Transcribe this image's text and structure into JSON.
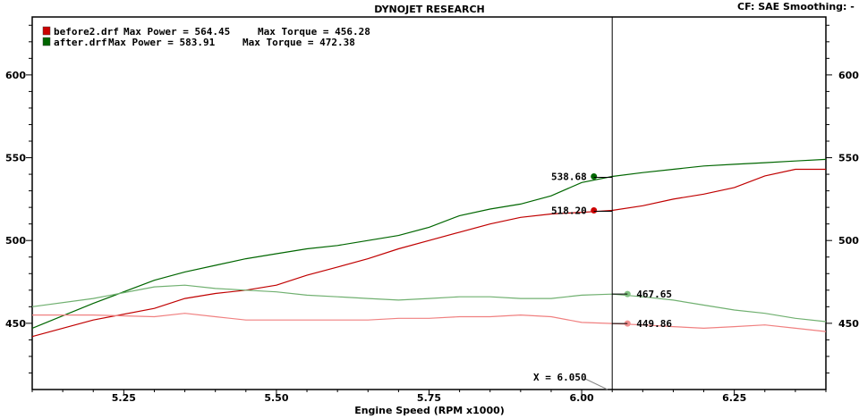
{
  "header": {
    "title": "DYNOJET RESEARCH",
    "right_info": "CF: SAE  Smoothing: -"
  },
  "legend": [
    {
      "file": "before2.drf",
      "power_label": "Max Power = 564.45",
      "torque_label": "Max Torque = 456.28",
      "color": "#cc0000"
    },
    {
      "file": "after.drf",
      "power_label": "Max Power = 583.91",
      "torque_label": "Max Torque = 472.38",
      "color": "#006600"
    }
  ],
  "cursor": {
    "label": "X = 6.050"
  },
  "chart_data": {
    "type": "line",
    "xlabel": "Engine Speed (RPM x1000)",
    "ylabel": "",
    "xlim": [
      5.1,
      6.4
    ],
    "ylim": [
      410,
      635
    ],
    "x_ticks": [
      5.25,
      5.5,
      5.75,
      6.0,
      6.25
    ],
    "x_tick_labels": [
      "5.25",
      "5.50",
      "5.75",
      "6.00",
      "6.25"
    ],
    "y_ticks": [
      450,
      500,
      550,
      600
    ],
    "y_tick_labels": [
      "450",
      "500",
      "550",
      "600"
    ],
    "cursor_x": 6.05,
    "grid": true,
    "series": [
      {
        "name": "before2.drf Power",
        "color": "#c00000",
        "x": [
          5.1,
          5.2,
          5.3,
          5.35,
          5.4,
          5.45,
          5.5,
          5.55,
          5.6,
          5.65,
          5.7,
          5.75,
          5.8,
          5.85,
          5.9,
          5.95,
          6.0,
          6.05,
          6.1,
          6.15,
          6.2,
          6.25,
          6.3,
          6.35,
          6.4
        ],
        "y": [
          442,
          452,
          459,
          465,
          468,
          470,
          473,
          479,
          484,
          489,
          495,
          500,
          505,
          510,
          514,
          516,
          517,
          518.2,
          521,
          525,
          528,
          532,
          539,
          543,
          543
        ]
      },
      {
        "name": "after.drf Power",
        "color": "#006600",
        "x": [
          5.1,
          5.2,
          5.3,
          5.35,
          5.4,
          5.45,
          5.5,
          5.55,
          5.6,
          5.65,
          5.7,
          5.75,
          5.8,
          5.85,
          5.9,
          5.95,
          6.0,
          6.05,
          6.1,
          6.15,
          6.2,
          6.25,
          6.3,
          6.35,
          6.4
        ],
        "y": [
          447,
          462,
          476,
          481,
          485,
          489,
          492,
          495,
          497,
          500,
          503,
          508,
          515,
          519,
          522,
          527,
          535,
          538.68,
          541,
          543,
          545,
          546,
          547,
          548,
          549
        ]
      },
      {
        "name": "before2.drf Torque",
        "color": "#f08080",
        "x": [
          5.1,
          5.2,
          5.3,
          5.35,
          5.4,
          5.45,
          5.5,
          5.55,
          5.6,
          5.65,
          5.7,
          5.75,
          5.8,
          5.85,
          5.9,
          5.95,
          6.0,
          6.05,
          6.1,
          6.15,
          6.2,
          6.25,
          6.3,
          6.35,
          6.4
        ],
        "y": [
          455,
          455,
          454,
          456,
          454,
          452,
          452,
          452,
          452,
          452,
          453,
          453,
          454,
          454,
          455,
          454,
          450.5,
          449.86,
          449,
          448,
          447,
          448,
          449,
          447,
          445
        ]
      },
      {
        "name": "after.drf Torque",
        "color": "#70b070",
        "x": [
          5.1,
          5.2,
          5.3,
          5.35,
          5.4,
          5.45,
          5.5,
          5.55,
          5.6,
          5.65,
          5.7,
          5.75,
          5.8,
          5.85,
          5.9,
          5.95,
          6.0,
          6.05,
          6.1,
          6.15,
          6.2,
          6.25,
          6.3,
          6.35,
          6.4
        ],
        "y": [
          460,
          465,
          472,
          473,
          471,
          470,
          469,
          467,
          466,
          465,
          464,
          465,
          466,
          466,
          465,
          465,
          467,
          467.65,
          466,
          464,
          461,
          458,
          456,
          453,
          451
        ]
      }
    ],
    "markers": [
      {
        "series": "after.drf Power",
        "x": 6.02,
        "y": 538.68,
        "label": "538.68",
        "color": "#006600",
        "side": "left"
      },
      {
        "series": "before2.drf Power",
        "x": 6.02,
        "y": 518.2,
        "label": "518.20",
        "color": "#cc0000",
        "side": "left"
      },
      {
        "series": "after.drf Torque",
        "x": 6.075,
        "y": 467.65,
        "label": "467.65",
        "color": "#80c080",
        "side": "right"
      },
      {
        "series": "before2.drf Torque",
        "x": 6.075,
        "y": 449.86,
        "label": "449.86",
        "color": "#f09090",
        "side": "right"
      }
    ]
  }
}
